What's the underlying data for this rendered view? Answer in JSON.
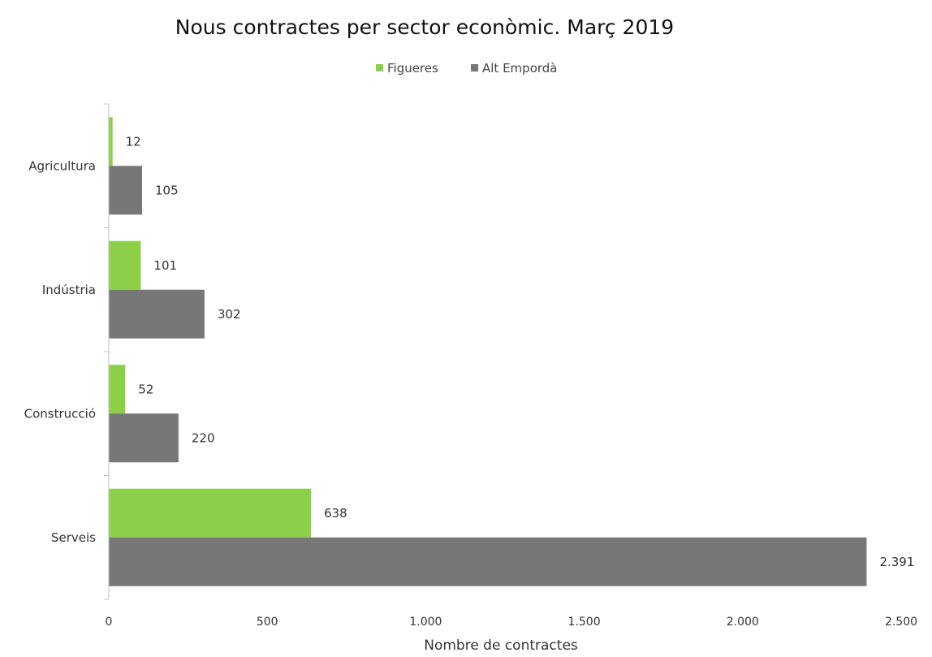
{
  "chart_data": {
    "type": "bar",
    "orientation": "horizontal",
    "title": "Nous contractes per sector econòmic. Març 2019",
    "xlabel": "Nombre de contractes",
    "ylabel": "",
    "xlim": [
      0,
      2500
    ],
    "x_ticks": [
      0,
      500,
      1000,
      1500,
      2000,
      2500
    ],
    "x_tick_labels": [
      "0",
      "500",
      "1.000",
      "1.500",
      "2.000",
      "2.500"
    ],
    "categories": [
      "Agricultura",
      "Indústria",
      "Construcció",
      "Serveis"
    ],
    "series": [
      {
        "name": "Figueres",
        "color": "#8cd04a",
        "values": [
          12,
          101,
          52,
          638
        ],
        "labels": [
          "12",
          "101",
          "52",
          "638"
        ]
      },
      {
        "name": "Alt Empordà",
        "color": "#777777",
        "values": [
          105,
          302,
          220,
          2391
        ],
        "labels": [
          "105",
          "302",
          "220",
          "2.391"
        ]
      }
    ],
    "legend_position": "top-center",
    "grid": false
  }
}
